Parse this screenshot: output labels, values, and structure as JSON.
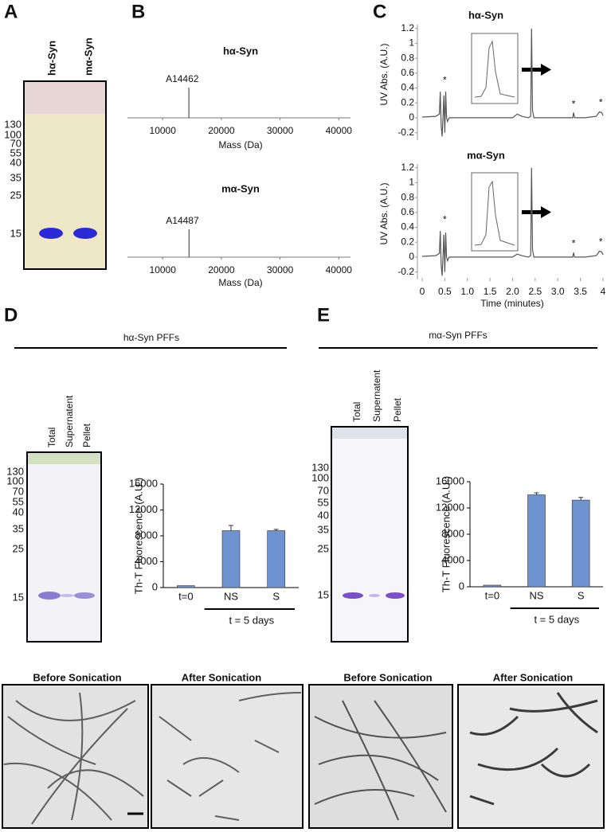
{
  "panel_labels": [
    "A",
    "B",
    "C",
    "D",
    "E"
  ],
  "gel_a": {
    "lanes": [
      "hα-Syn",
      "mα-Syn"
    ],
    "markers": [
      130,
      100,
      70,
      55,
      40,
      35,
      25,
      15
    ]
  },
  "gel_d": {
    "title": "hα-Syn  PFFs",
    "lanes": [
      "Total",
      "Supernatent",
      "Pellet"
    ],
    "markers": [
      130,
      100,
      70,
      55,
      40,
      35,
      25,
      15
    ]
  },
  "gel_e": {
    "title": "mα-Syn  PFFs",
    "lanes": [
      "Total",
      "Supernatent",
      "Pellet"
    ],
    "markers": [
      130,
      100,
      70,
      55,
      40,
      35,
      25,
      15
    ]
  },
  "em_images": [
    "Before Sonication",
    "After Sonication",
    "Before Sonication",
    "After Sonication"
  ],
  "chart_data": [
    {
      "type": "spectrum",
      "title": "hα-Syn",
      "x_label": "Mass (Da)",
      "xlim": [
        4000,
        42000
      ],
      "xticks": [
        10000,
        20000,
        30000,
        40000
      ],
      "peaks": [
        14462
      ],
      "peak_labels": [
        "A14462"
      ]
    },
    {
      "type": "spectrum",
      "title": "mα-Syn",
      "x_label": "Mass (Da)",
      "xlim": [
        4000,
        42000
      ],
      "xticks": [
        10000,
        20000,
        30000,
        40000
      ],
      "peaks": [
        14487
      ],
      "peak_labels": [
        "A14487"
      ]
    },
    {
      "type": "line",
      "title": "hα-Syn",
      "y_label": "UV Abs. (A.U.)",
      "xlim": [
        0,
        4
      ],
      "ylim": [
        -0.3,
        1.25
      ],
      "yticks": [
        -0.2,
        0,
        0.2,
        0.4,
        0.6,
        0.8,
        1,
        1.2
      ],
      "annotations": [
        "*",
        "*",
        "*"
      ],
      "x": [
        0,
        0.3,
        0.38,
        0.4,
        0.42,
        0.44,
        0.46,
        0.48,
        0.5,
        0.52,
        0.54,
        0.56,
        0.6,
        0.8,
        1.5,
        2.0,
        2.1,
        2.2,
        2.35,
        2.4,
        2.42,
        2.44,
        2.47,
        2.5,
        2.6,
        3.0,
        3.33,
        3.35,
        3.37,
        3.6,
        3.85,
        3.92,
        3.97,
        4.0
      ],
      "values": [
        0.01,
        0.02,
        0.05,
        0.35,
        -0.1,
        -0.25,
        0.0,
        0.3,
        -0.2,
        0.35,
        0.0,
        -0.05,
        0.0,
        0.0,
        0.0,
        0.0,
        0.05,
        0.02,
        0.0,
        0.02,
        1.2,
        0.1,
        0.0,
        0.0,
        0.0,
        0.0,
        0.0,
        0.07,
        0.0,
        0.0,
        0.02,
        0.08,
        0.07,
        0.03
      ],
      "color": "#555555"
    },
    {
      "type": "line",
      "title": "mα-Syn",
      "y_label": "UV Abs. (A.U.)",
      "x_label": "Time (minutes)",
      "xlim": [
        0,
        4
      ],
      "ylim": [
        -0.3,
        1.25
      ],
      "yticks": [
        -0.2,
        0,
        0.2,
        0.4,
        0.6,
        0.8,
        1,
        1.2
      ],
      "xticks": [
        0,
        0.5,
        {
          "value": 1,
          "label": "1.0"
        },
        1.5,
        {
          "value": 2,
          "label": "2.0"
        },
        2.5,
        {
          "value": 3,
          "label": "3.0"
        },
        3.5,
        4
      ],
      "annotations": [
        "*",
        "*",
        "*"
      ],
      "x": [
        0,
        0.3,
        0.38,
        0.4,
        0.42,
        0.44,
        0.46,
        0.48,
        0.5,
        0.52,
        0.54,
        0.56,
        0.6,
        0.8,
        1.5,
        2.0,
        2.1,
        2.2,
        2.35,
        2.4,
        2.42,
        2.44,
        2.47,
        2.5,
        2.6,
        3.0,
        3.33,
        3.35,
        3.37,
        3.6,
        3.85,
        3.92,
        3.97,
        4.0
      ],
      "values": [
        0.01,
        0.02,
        0.05,
        0.35,
        -0.1,
        -0.25,
        0.0,
        0.3,
        -0.2,
        0.33,
        0.0,
        -0.05,
        0.0,
        0.0,
        0.0,
        0.0,
        0.04,
        0.02,
        0.0,
        0.02,
        1.2,
        0.1,
        0.0,
        0.0,
        0.0,
        0.0,
        0.0,
        0.06,
        0.0,
        0.0,
        0.02,
        0.08,
        0.07,
        0.03
      ],
      "color": "#555555"
    },
    {
      "type": "bar",
      "y_label": "Th-T Fluorescence (A.U.)",
      "categories": [
        "t=0",
        "NS",
        "S"
      ],
      "values": [
        300,
        8800,
        8800
      ],
      "errors": [
        0,
        800,
        200
      ],
      "ylim": [
        0,
        16000
      ],
      "yticks": [
        0,
        4000,
        8000,
        12000,
        16000
      ],
      "annotation": "t = 5 days",
      "color": "#6f93d0"
    },
    {
      "type": "bar",
      "y_label": "Th-T Fluorescence (A.U.)",
      "categories": [
        "t=0",
        "NS",
        "S"
      ],
      "values": [
        250,
        14000,
        13200
      ],
      "errors": [
        0,
        300,
        400
      ],
      "ylim": [
        0,
        16000
      ],
      "yticks": [
        0,
        4000,
        8000,
        12000,
        16000
      ],
      "annotation": "t = 5 days",
      "color": "#6f93d0"
    }
  ]
}
